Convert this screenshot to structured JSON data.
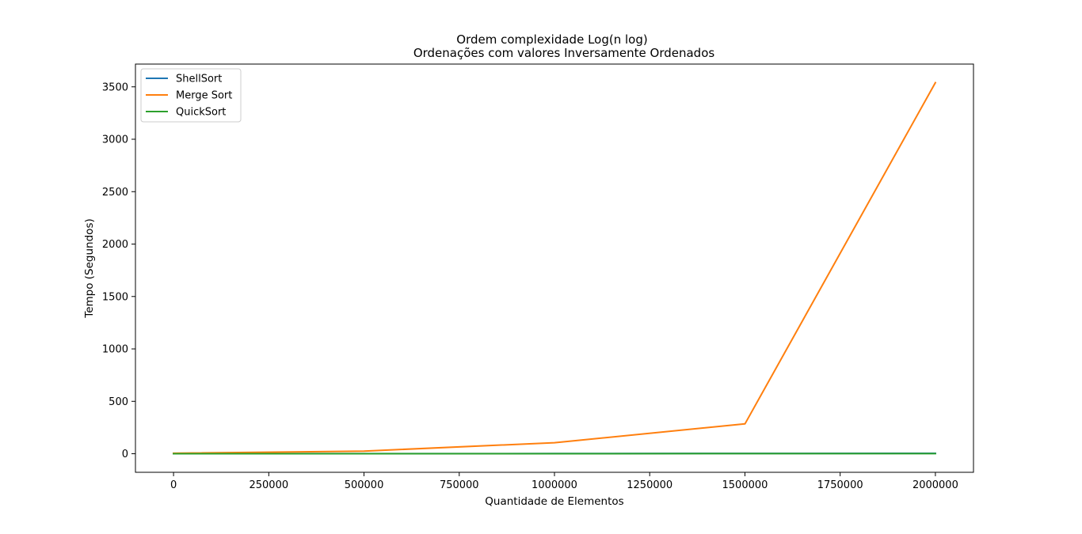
{
  "chart_data": {
    "type": "line",
    "title": "Ordem complexidade Log(n log)",
    "subtitle": "Ordenações com valores Inversamente Ordenados",
    "xlabel": "Quantidade de Elementos",
    "ylabel": "Tempo (Segundos)",
    "xlim": [
      -100000,
      2100000
    ],
    "ylim": [
      -177,
      3717
    ],
    "x_ticks": [
      0,
      250000,
      500000,
      750000,
      1000000,
      1250000,
      1500000,
      1750000,
      2000000
    ],
    "x_tick_labels": [
      "0",
      "250000",
      "500000",
      "750000",
      "1000000",
      "1250000",
      "1500000",
      "1750000",
      "2000000"
    ],
    "y_ticks": [
      0,
      500,
      1000,
      1500,
      2000,
      2500,
      3000,
      3500
    ],
    "y_tick_labels": [
      "0",
      "500",
      "1000",
      "1500",
      "2000",
      "2500",
      "3000",
      "3500"
    ],
    "grid": false,
    "legend_position": "top-left",
    "x": [
      0,
      500000,
      1000000,
      1500000,
      2000000
    ],
    "series": [
      {
        "name": "ShellSort",
        "color": "#1f77b4",
        "values": [
          0.5,
          1,
          2,
          3,
          4
        ]
      },
      {
        "name": "Merge Sort",
        "color": "#ff7f0e",
        "values": [
          5,
          25,
          105,
          285,
          3540
        ]
      },
      {
        "name": "QuickSort",
        "color": "#2ca02c",
        "values": [
          0.1,
          0.3,
          0.6,
          0.9,
          1.2
        ]
      }
    ]
  }
}
